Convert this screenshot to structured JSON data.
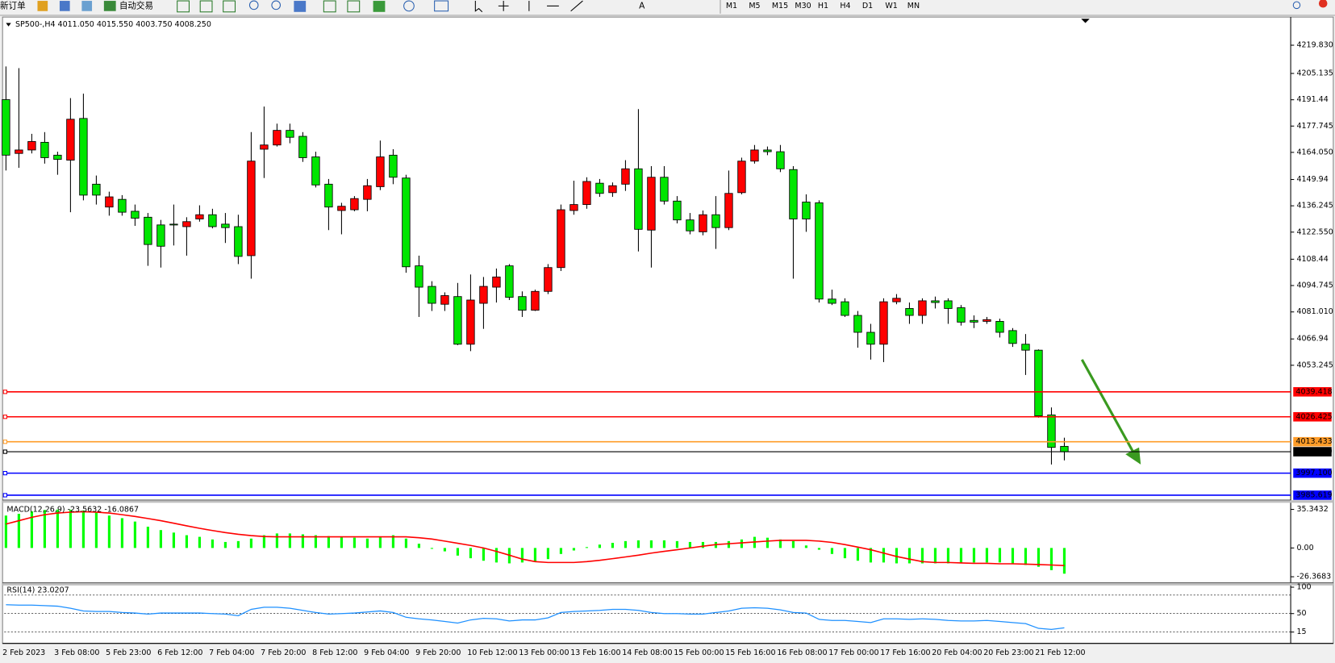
{
  "toolbar": {
    "new_order": "新订单",
    "auto_trading": "自动交易",
    "timeframes": [
      "M1",
      "M5",
      "M15",
      "M30",
      "H1",
      "H4",
      "D1",
      "W1",
      "MN"
    ]
  },
  "chart_data": [
    {
      "type": "candlestick",
      "title": "SP500-,H4  4011.050 4015.550 4003.750 4008.250",
      "up_color": "#ff0000",
      "down_color": "#00e600",
      "categories": [
        "2 Feb 2023",
        null,
        null,
        null,
        "3 Feb 08:00",
        null,
        null,
        null,
        "5 Feb 23:00",
        null,
        null,
        null,
        "6 Feb 12:00",
        null,
        null,
        null,
        "7 Feb 04:00",
        null,
        null,
        null,
        "7 Feb 20:00",
        null,
        null,
        null,
        "8 Feb 12:00",
        null,
        null,
        null,
        "9 Feb 04:00",
        null,
        null,
        null,
        "9 Feb 20:00",
        null,
        null,
        null,
        "10 Feb 12:00",
        null,
        null,
        null,
        "13 Feb 00:00",
        null,
        null,
        null,
        "13 Feb 16:00",
        null,
        null,
        null,
        "14 Feb 08:00",
        null,
        null,
        null,
        "15 Feb 00:00",
        null,
        null,
        null,
        "15 Feb 16:00",
        null,
        null,
        null,
        "16 Feb 08:00",
        null,
        null,
        null,
        "17 Feb 00:00",
        null,
        null,
        null,
        "17 Feb 16:00",
        null,
        null,
        null,
        "20 Feb 04:00",
        null,
        null,
        null,
        "20 Feb 23:00",
        null,
        null,
        null,
        "21 Feb 12:00",
        null,
        null
      ],
      "open": [
        4191.5,
        4163.5,
        4165.3,
        4169.3,
        4162.6,
        4160.0,
        4181.7,
        4147.5,
        4135.6,
        4139.6,
        4133.4,
        4130.3,
        4126.3,
        4126.7,
        4125.4,
        4129.4,
        4131.6,
        4126.7,
        4125.4,
        4110.3,
        4165.7,
        4167.9,
        4175.5,
        4172.4,
        4161.7,
        4147.5,
        4133.8,
        4134.2,
        4139.6,
        4146.2,
        4162.6,
        4150.7,
        4105.0,
        4094.3,
        4085.0,
        4089.0,
        4064.2,
        4085.5,
        4093.9,
        4105.0,
        4089.0,
        4081.9,
        4091.7,
        4104.1,
        4133.8,
        4136.9,
        4148.0,
        4143.1,
        4147.5,
        4155.5,
        4123.6,
        4151.1,
        4138.7,
        4128.9,
        4122.7,
        4131.6,
        4124.9,
        4143.1,
        4159.5,
        4165.3,
        4164.4,
        4155.1,
        4138.2,
        4137.8,
        4087.7,
        4086.3,
        4079.2,
        4070.4,
        4064.2,
        4086.3,
        4082.8,
        4079.2,
        4086.8,
        4086.8,
        4083.2,
        4076.6,
        4076.1,
        4076.1,
        4071.3,
        4064.2,
        4061.1,
        4027.4,
        4011.05
      ],
      "high": [
        4208.8,
        4207.9,
        4173.7,
        4174.6,
        4164.4,
        4192.3,
        4194.6,
        4152.0,
        4143.6,
        4141.8,
        4136.9,
        4132.5,
        4128.9,
        4136.9,
        4130.3,
        4136.5,
        4134.7,
        4132.5,
        4131.6,
        4174.6,
        4187.9,
        4179.0,
        4179.0,
        4174.6,
        4164.4,
        4150.2,
        4137.8,
        4141.3,
        4150.2,
        4170.2,
        4165.7,
        4152.4,
        4110.3,
        4097.0,
        4091.2,
        4096.1,
        4100.5,
        4099.2,
        4103.6,
        4105.9,
        4091.7,
        4092.6,
        4105.9,
        4136.9,
        4149.3,
        4151.1,
        4150.2,
        4148.4,
        4160.0,
        4186.6,
        4156.9,
        4156.9,
        4141.3,
        4132.5,
        4133.8,
        4141.3,
        4154.6,
        4161.3,
        4167.9,
        4167.1,
        4167.9,
        4156.9,
        4142.2,
        4139.1,
        4092.6,
        4088.1,
        4081.5,
        4074.8,
        4088.1,
        4090.3,
        4085.9,
        4088.1,
        4089.0,
        4088.1,
        4084.6,
        4079.2,
        4078.4,
        4077.5,
        4072.6,
        4069.5,
        4061.5,
        4031.3,
        4015.55
      ],
      "low": [
        4154.6,
        4156.0,
        4163.5,
        4158.2,
        4152.4,
        4132.9,
        4139.1,
        4136.9,
        4131.1,
        4131.1,
        4125.8,
        4105.0,
        4104.1,
        4115.6,
        4110.3,
        4128.0,
        4124.5,
        4116.9,
        4105.9,
        4098.3,
        4150.7,
        4167.1,
        4168.8,
        4159.1,
        4145.8,
        4123.6,
        4121.4,
        4133.4,
        4133.4,
        4144.4,
        4147.5,
        4101.4,
        4078.4,
        4081.5,
        4081.5,
        4063.7,
        4060.6,
        4072.2,
        4085.9,
        4087.2,
        4078.4,
        4081.5,
        4090.3,
        4102.3,
        4131.6,
        4134.7,
        4140.9,
        4140.9,
        4144.0,
        4112.5,
        4104.1,
        4136.9,
        4127.1,
        4121.4,
        4120.9,
        4113.8,
        4123.6,
        4142.2,
        4158.2,
        4162.6,
        4153.8,
        4098.3,
        4122.7,
        4085.9,
        4084.6,
        4078.4,
        4062.4,
        4056.2,
        4054.9,
        4085.0,
        4074.8,
        4074.8,
        4082.8,
        4074.8,
        4073.9,
        4072.6,
        4074.8,
        4067.7,
        4062.8,
        4048.2,
        4026.0,
        4001.6,
        4003.75
      ],
      "close": [
        4162.6,
        4165.3,
        4169.7,
        4161.3,
        4160.4,
        4181.3,
        4141.8,
        4141.8,
        4140.9,
        4132.9,
        4129.8,
        4116.1,
        4115.2,
        4126.3,
        4128.0,
        4131.6,
        4125.4,
        4124.9,
        4109.9,
        4159.5,
        4167.9,
        4175.5,
        4171.9,
        4161.3,
        4147.1,
        4135.6,
        4136.0,
        4140.0,
        4146.7,
        4161.7,
        4151.1,
        4104.5,
        4093.9,
        4085.5,
        4089.5,
        4064.2,
        4087.2,
        4094.3,
        4099.2,
        4088.6,
        4081.9,
        4091.7,
        4104.1,
        4134.2,
        4136.9,
        4148.9,
        4142.7,
        4146.7,
        4155.5,
        4124.0,
        4151.1,
        4138.7,
        4128.9,
        4123.2,
        4131.6,
        4124.9,
        4142.7,
        4159.5,
        4165.3,
        4164.4,
        4155.5,
        4129.4,
        4129.4,
        4087.7,
        4085.5,
        4079.2,
        4070.4,
        4064.2,
        4086.3,
        4088.1,
        4079.2,
        4086.8,
        4085.9,
        4082.8,
        4075.7,
        4075.7,
        4077.0,
        4070.4,
        4064.6,
        4061.1,
        4026.9,
        4010.5,
        4008.25
      ],
      "ylim": [
        3983.0,
        4233.6
      ],
      "yticks": [
        {
          "value": 4219.83,
          "label": "4219.830"
        },
        4205.135,
        4191.44,
        4177.745,
        {
          "value": 4164.05,
          "label": "4164.050"
        },
        4149.94,
        4136.245,
        {
          "value": 4122.55,
          "label": "4122.550"
        },
        4108.44,
        4094.745,
        {
          "value": 4081.01,
          "label": "4081.010"
        },
        4066.94,
        4053.245
      ],
      "hlines": [
        {
          "value": 4039.418,
          "label": "4039.418",
          "color": "#ff0000"
        },
        {
          "value": 4026.425,
          "label": "4026.425",
          "color": "#ff0000"
        },
        {
          "value": 4013.433,
          "label": "4013.433",
          "color": "#ff9c28"
        },
        {
          "value": 4008.25,
          "label": "4008.250",
          "color": "#000000"
        },
        {
          "value": 3997.1,
          "label": "3997.100",
          "color": "#0000ff"
        },
        {
          "value": 3985.619,
          "label": "3985.619",
          "color": "#0000ff"
        }
      ]
    },
    {
      "type": "macd",
      "title": "MACD(12,26,9) -23.5632 -16.0867",
      "histogram_color": "#00ff00",
      "signal_color": "#ff0000",
      "histogram": [
        29.7,
        31.3,
        33.6,
        34.8,
        35.2,
        35.0,
        34.4,
        32.8,
        29.7,
        27.3,
        24.2,
        19.5,
        16.4,
        14.1,
        11.7,
        10.2,
        7.8,
        5.5,
        6.3,
        8.6,
        11.7,
        13.3,
        13.3,
        12.5,
        11.7,
        10.9,
        10.2,
        9.4,
        8.6,
        10.2,
        11.7,
        8.6,
        3.9,
        -0.8,
        -3.1,
        -7.0,
        -9.4,
        -11.7,
        -13.3,
        -14.1,
        -13.3,
        -12.5,
        -10.2,
        -5.5,
        -2.3,
        0.8,
        3.1,
        4.7,
        6.3,
        7.0,
        7.0,
        7.0,
        6.3,
        5.5,
        5.5,
        5.5,
        6.3,
        7.8,
        10.2,
        9.4,
        7.8,
        6.3,
        2.3,
        -1.6,
        -5.5,
        -9.4,
        -11.7,
        -13.3,
        -13.3,
        -14.1,
        -14.1,
        -14.1,
        -14.1,
        -14.1,
        -14.1,
        -13.3,
        -13.3,
        -13.3,
        -14.1,
        -15.6,
        -17.2,
        -20.3,
        -23.5632
      ],
      "signal": [
        21.9,
        25.0,
        28.1,
        30.5,
        32.0,
        32.8,
        33.2,
        32.8,
        32.0,
        30.5,
        28.9,
        27.0,
        25.0,
        22.7,
        20.3,
        18.0,
        16.0,
        14.1,
        12.5,
        11.3,
        10.5,
        10.2,
        10.2,
        10.2,
        10.2,
        10.2,
        10.2,
        10.2,
        10.2,
        10.2,
        10.2,
        10.2,
        9.4,
        8.2,
        6.3,
        4.3,
        2.3,
        0.0,
        -3.1,
        -6.6,
        -10.2,
        -12.5,
        -13.3,
        -13.3,
        -13.3,
        -12.5,
        -11.3,
        -9.8,
        -8.2,
        -6.6,
        -4.7,
        -3.1,
        -1.6,
        0.0,
        1.6,
        3.1,
        3.9,
        4.7,
        5.5,
        6.3,
        7.0,
        7.0,
        7.0,
        6.3,
        5.1,
        3.1,
        0.8,
        -1.6,
        -4.7,
        -7.8,
        -10.2,
        -12.5,
        -13.3,
        -13.3,
        -13.7,
        -14.1,
        -14.1,
        -14.5,
        -14.5,
        -14.8,
        -15.2,
        -15.6,
        -16.0867
      ],
      "ylim": [
        -32.0,
        41.4
      ],
      "yticks": [
        35.3432,
        {
          "value": 0,
          "label": "0.00"
        },
        -26.3683
      ]
    },
    {
      "type": "rsi",
      "title": "RSI(14) 23.0207",
      "color": "#1e90ff",
      "values": [
        66.7,
        66,
        66,
        65,
        64,
        60,
        55,
        54,
        54,
        52,
        51,
        49,
        51,
        51,
        51,
        51,
        50,
        49,
        46,
        58,
        62,
        62,
        60,
        56,
        52,
        49,
        50,
        51,
        53,
        55,
        52,
        43,
        40,
        38,
        35,
        32,
        38,
        41,
        40,
        36,
        38,
        38,
        42,
        52,
        54,
        55,
        56,
        58,
        58,
        56,
        52,
        50,
        50,
        49,
        49,
        52,
        55,
        60,
        61,
        60,
        57,
        52,
        51,
        39,
        37,
        37,
        35,
        33,
        40,
        40,
        39,
        40,
        39,
        37,
        36,
        36,
        37,
        35,
        33,
        31,
        22,
        20,
        23.0207
      ],
      "ylim": [
        -3.3,
        103.3
      ],
      "yticks": [
        100,
        50,
        15
      ],
      "levels": [
        85,
        50,
        15
      ]
    }
  ]
}
